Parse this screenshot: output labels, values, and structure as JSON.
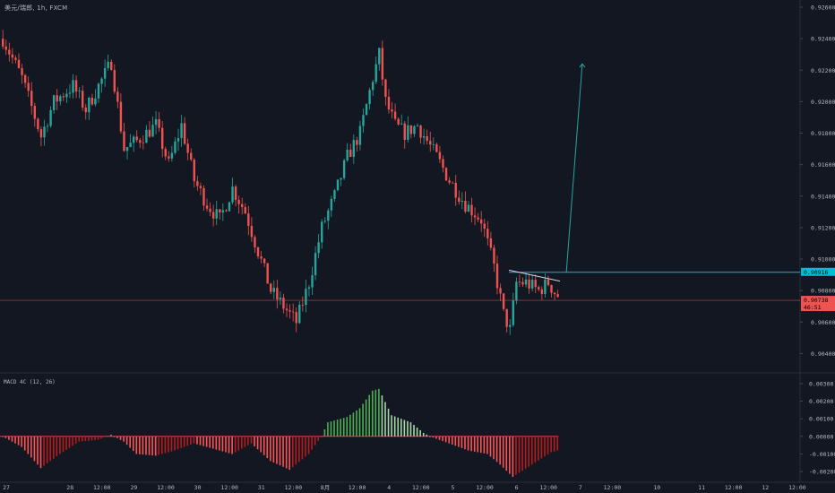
{
  "header": {
    "symbol_label": "美元/瑞郎, 1h, FXCM"
  },
  "macd": {
    "label": "MACD 4C (12, 26)"
  },
  "colors": {
    "background": "#131722",
    "grid": "#1e222d",
    "up": "#26a69a",
    "down": "#ef5350",
    "axis_text": "#b2b5be",
    "hline_cyan": "#00bcd4",
    "price_line_red": "#ef5350",
    "histogram_green_strong": "#4caf50",
    "histogram_green_light": "#a5d6a7",
    "histogram_red_strong": "#ff5252",
    "histogram_red_dark": "#b71c1c"
  },
  "chart_data": [
    {
      "type": "candlestick",
      "title": "美元/瑞郎, 1h, FXCM",
      "ylim": [
        0.903,
        0.926
      ],
      "y_ticks": [
        "0.92600",
        "0.92400",
        "0.92200",
        "0.92000",
        "0.91800",
        "0.91600",
        "0.91400",
        "0.91200",
        "0.91000",
        "0.90800",
        "0.90600",
        "0.90400"
      ],
      "y_tick_values": [
        0.926,
        0.924,
        0.922,
        0.92,
        0.918,
        0.916,
        0.914,
        0.912,
        0.91,
        0.908,
        0.906,
        0.904
      ],
      "x_ticks": [
        "27",
        "28",
        "12:00",
        "29",
        "12:00",
        "30",
        "12:00",
        "31",
        "12:00",
        "8月",
        "12:00",
        "4",
        "12:00",
        "5",
        "12:00",
        "6",
        "12:00",
        "7",
        "12:00",
        "10",
        "11",
        "12:00",
        "12",
        "12:00"
      ],
      "x_tick_index": [
        0,
        20,
        30,
        40,
        50,
        60,
        70,
        80,
        90,
        100,
        110,
        120,
        130,
        140,
        150,
        160,
        170,
        180,
        190,
        204,
        218,
        228,
        238,
        248
      ],
      "price_levels": [
        {
          "name": "resistance",
          "value": 0.90916,
          "label": "0.90916",
          "color": "#00bcd4"
        },
        {
          "name": "last-price",
          "value": 0.90738,
          "label": "0.90738",
          "sublabel": "46:51",
          "color": "#ef5350"
        }
      ],
      "projection": {
        "from_index": 177,
        "from_value": 0.90916,
        "to_index": 182,
        "to_value": 0.9224
      },
      "trendline": {
        "from_index": 159,
        "from_value": 0.9093,
        "to_index": 175,
        "to_value": 0.9086
      },
      "keypoints": [
        [
          0,
          0.924
        ],
        [
          6,
          0.9215
        ],
        [
          12,
          0.9178
        ],
        [
          16,
          0.92
        ],
        [
          22,
          0.921
        ],
        [
          26,
          0.9195
        ],
        [
          30,
          0.921
        ],
        [
          34,
          0.9225
        ],
        [
          38,
          0.917
        ],
        [
          42,
          0.9175
        ],
        [
          48,
          0.9185
        ],
        [
          52,
          0.916
        ],
        [
          56,
          0.9185
        ],
        [
          60,
          0.915
        ],
        [
          64,
          0.9135
        ],
        [
          68,
          0.9125
        ],
        [
          72,
          0.9145
        ],
        [
          76,
          0.913
        ],
        [
          80,
          0.9105
        ],
        [
          84,
          0.908
        ],
        [
          88,
          0.907
        ],
        [
          92,
          0.906
        ],
        [
          96,
          0.9085
        ],
        [
          100,
          0.912
        ],
        [
          104,
          0.914
        ],
        [
          108,
          0.9165
        ],
        [
          112,
          0.918
        ],
        [
          116,
          0.9215
        ],
        [
          118,
          0.923
        ],
        [
          120,
          0.92
        ],
        [
          123,
          0.9185
        ],
        [
          126,
          0.918
        ],
        [
          130,
          0.9185
        ],
        [
          133,
          0.9175
        ],
        [
          136,
          0.9165
        ],
        [
          140,
          0.915
        ],
        [
          145,
          0.9135
        ],
        [
          150,
          0.9125
        ],
        [
          154,
          0.9095
        ],
        [
          157,
          0.9065
        ],
        [
          159,
          0.9055
        ],
        [
          161,
          0.9085
        ],
        [
          164,
          0.9085
        ],
        [
          168,
          0.908
        ],
        [
          171,
          0.9085
        ],
        [
          174,
          0.9076
        ]
      ]
    },
    {
      "type": "histogram",
      "title": "MACD 4C (12, 26)",
      "ylim": [
        -0.0023,
        0.0033
      ],
      "y_ticks": [
        "0.00300",
        "0.00200",
        "0.00100",
        "0.00000",
        "-0.00100",
        "-0.00200"
      ],
      "y_tick_values": [
        0.003,
        0.002,
        0.001,
        0.0,
        -0.001,
        -0.002
      ],
      "keypoints": [
        [
          0,
          0.0
        ],
        [
          6,
          -0.0006
        ],
        [
          12,
          -0.0018
        ],
        [
          18,
          -0.001
        ],
        [
          24,
          -0.0003
        ],
        [
          30,
          -0.0002
        ],
        [
          34,
          0.0001
        ],
        [
          38,
          -0.0003
        ],
        [
          42,
          -0.001
        ],
        [
          48,
          -0.0011
        ],
        [
          54,
          -0.0008
        ],
        [
          60,
          -0.0004
        ],
        [
          66,
          -0.0007
        ],
        [
          72,
          -0.001
        ],
        [
          78,
          -0.0004
        ],
        [
          84,
          -0.0014
        ],
        [
          90,
          -0.0019
        ],
        [
          96,
          -0.001
        ],
        [
          100,
          0.0
        ],
        [
          102,
          0.0008
        ],
        [
          108,
          0.0011
        ],
        [
          112,
          0.0016
        ],
        [
          116,
          0.0026
        ],
        [
          118,
          0.0027
        ],
        [
          122,
          0.0012
        ],
        [
          128,
          0.0008
        ],
        [
          132,
          0.0002
        ],
        [
          134,
          0.0
        ],
        [
          140,
          -0.0004
        ],
        [
          146,
          -0.0008
        ],
        [
          152,
          -0.001
        ],
        [
          156,
          -0.0016
        ],
        [
          160,
          -0.0023
        ],
        [
          166,
          -0.0016
        ],
        [
          172,
          -0.0009
        ],
        [
          174,
          -0.0008
        ]
      ]
    }
  ]
}
